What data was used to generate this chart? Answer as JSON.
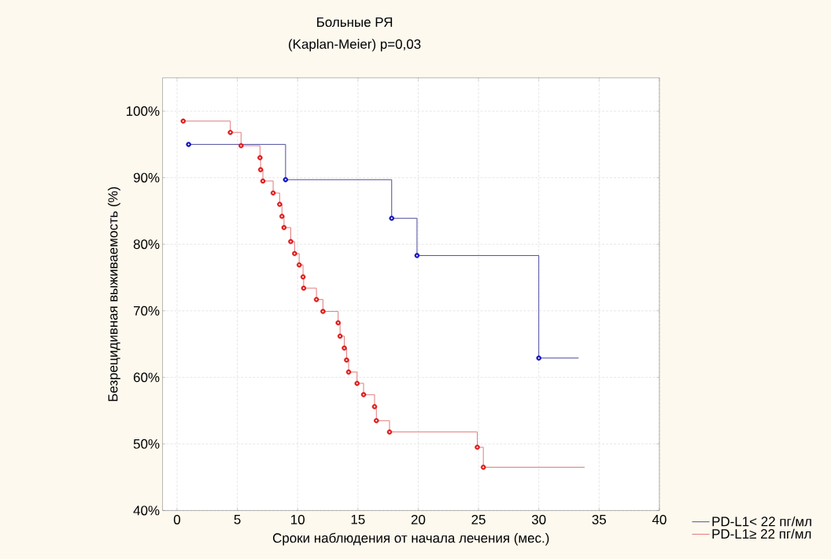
{
  "chart_data": {
    "type": "step",
    "title": "Больные РЯ",
    "subtitle": "(Kaplan-Meier)     p=0,03",
    "xlabel": "Сроки наблюдения от начала лечения (мес.)",
    "ylabel": "Безрецидивная выживаемость (%)",
    "xlim": [
      -1.2,
      40
    ],
    "ylim": [
      40,
      105
    ],
    "xticks": [
      0,
      5,
      10,
      15,
      20,
      25,
      30,
      35,
      40
    ],
    "yticks": [
      {
        "value": 40,
        "label": "40%"
      },
      {
        "value": 50,
        "label": "50%"
      },
      {
        "value": 60,
        "label": "60%"
      },
      {
        "value": 70,
        "label": "70%"
      },
      {
        "value": 80,
        "label": "80%"
      },
      {
        "value": 90,
        "label": "90%"
      },
      {
        "value": 100,
        "label": "100%"
      }
    ],
    "grid": true,
    "legend": "bottom right",
    "marker": "circle",
    "series": [
      {
        "name": "PD-L1< 22 пг/мл",
        "color": "#4b4b9e",
        "x": [
          0.96,
          9.0,
          17.8,
          19.9,
          30.0,
          33.3
        ],
        "values": [
          95.0,
          89.7,
          83.9,
          78.3,
          62.9,
          62.9
        ]
      },
      {
        "name": "PD-L1≥ 22 пг/мл",
        "color": "#e07a7a",
        "x": [
          0.51,
          4.42,
          5.31,
          6.88,
          6.93,
          7.12,
          7.97,
          8.51,
          8.7,
          8.87,
          9.43,
          9.75,
          10.13,
          10.45,
          10.5,
          11.56,
          12.1,
          13.36,
          13.52,
          13.87,
          14.06,
          14.23,
          14.93,
          15.47,
          16.38,
          16.53,
          17.62,
          24.9,
          25.4,
          33.8
        ],
        "values": [
          98.5,
          96.8,
          94.8,
          93.0,
          91.2,
          89.5,
          87.7,
          86.0,
          84.2,
          82.5,
          80.4,
          78.6,
          76.9,
          75.1,
          73.4,
          71.7,
          69.9,
          68.2,
          66.2,
          64.4,
          62.6,
          60.8,
          59.1,
          57.4,
          55.6,
          53.5,
          51.8,
          49.5,
          46.5,
          46.5
        ]
      },
      {
        "type": "scatter",
        "color": "#1010c0",
        "x": [
          0.96,
          9.0,
          17.8,
          19.9,
          30.0
        ],
        "values": [
          95.0,
          89.7,
          83.9,
          78.3,
          62.9
        ]
      },
      {
        "type": "scatter",
        "color": "#dd1818",
        "x": [
          0.51,
          4.42,
          5.31,
          6.88,
          6.93,
          7.12,
          7.97,
          8.51,
          8.7,
          8.87,
          9.43,
          9.75,
          10.13,
          10.45,
          10.5,
          11.56,
          12.1,
          13.36,
          13.52,
          13.87,
          14.06,
          14.23,
          14.93,
          15.47,
          16.38,
          16.53,
          17.62,
          24.9,
          25.4
        ],
        "values": [
          98.5,
          96.8,
          94.8,
          93.0,
          91.2,
          89.5,
          87.7,
          86.0,
          84.2,
          82.5,
          80.4,
          78.6,
          76.9,
          75.1,
          73.4,
          71.7,
          69.9,
          68.2,
          66.2,
          64.4,
          62.6,
          60.8,
          59.1,
          57.4,
          55.6,
          53.5,
          51.8,
          49.5,
          46.5
        ]
      }
    ]
  }
}
